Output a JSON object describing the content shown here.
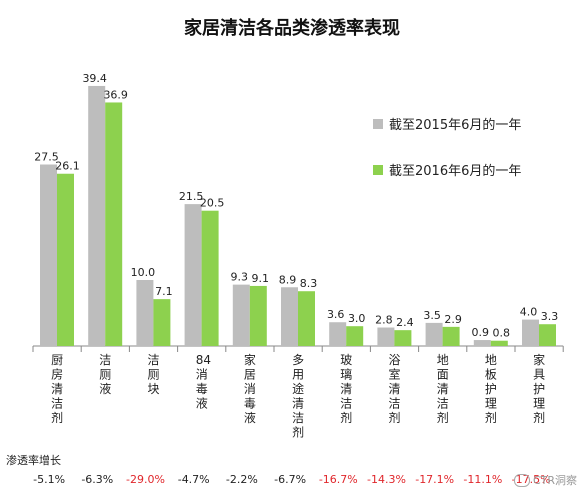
{
  "chart_data": {
    "type": "bar",
    "title": "家居清洁各品类渗透率表现",
    "categories": [
      "厨房清洁剂",
      "洁厕液",
      "洁厕块",
      "84消毒液",
      "家居消毒液",
      "多用途清洁剂",
      "玻璃清洁剂",
      "浴室清洁剂",
      "地面清洁剂",
      "地板护理剂",
      "家具护理剂"
    ],
    "series": [
      {
        "name": "截至2015年6月的一年",
        "values": [
          27.5,
          39.4,
          10.0,
          21.5,
          9.3,
          8.9,
          3.6,
          2.8,
          3.5,
          0.9,
          4.0
        ],
        "color": "#bdbdbd"
      },
      {
        "name": "截至2016年6月的一年",
        "values": [
          26.1,
          36.9,
          7.1,
          20.5,
          9.1,
          8.3,
          3.0,
          2.4,
          2.9,
          0.8,
          3.3
        ],
        "color": "#8dd14e"
      }
    ],
    "value_labels_2015": [
      "27.5",
      "39.4",
      "10.0",
      "21.5",
      "9.3",
      "8.9",
      "3.6",
      "2.8",
      "3.5",
      "0.9",
      "4.0"
    ],
    "value_labels_2016": [
      "26.1",
      "36.9",
      "7.1",
      "20.5",
      "9.1",
      "8.3",
      "3.0",
      "2.4",
      "2.9",
      "0.8",
      "3.3"
    ],
    "ylim": [
      0,
      40
    ],
    "legend_position": "right",
    "grid": false
  },
  "growth": {
    "title": "渗透率增长",
    "values": [
      "-5.1%",
      "-6.3%",
      "-29.0%",
      "-4.7%",
      "-2.2%",
      "-6.7%",
      "-16.7%",
      "-14.3%",
      "-17.1%",
      "-11.1%",
      "-17.5%"
    ],
    "colors": [
      "#222222",
      "#222222",
      "#e0262b",
      "#222222",
      "#222222",
      "#222222",
      "#e0262b",
      "#e0262b",
      "#e0262b",
      "#e0262b",
      "#e0262b"
    ]
  },
  "watermark": {
    "text": "CTR洞察"
  }
}
